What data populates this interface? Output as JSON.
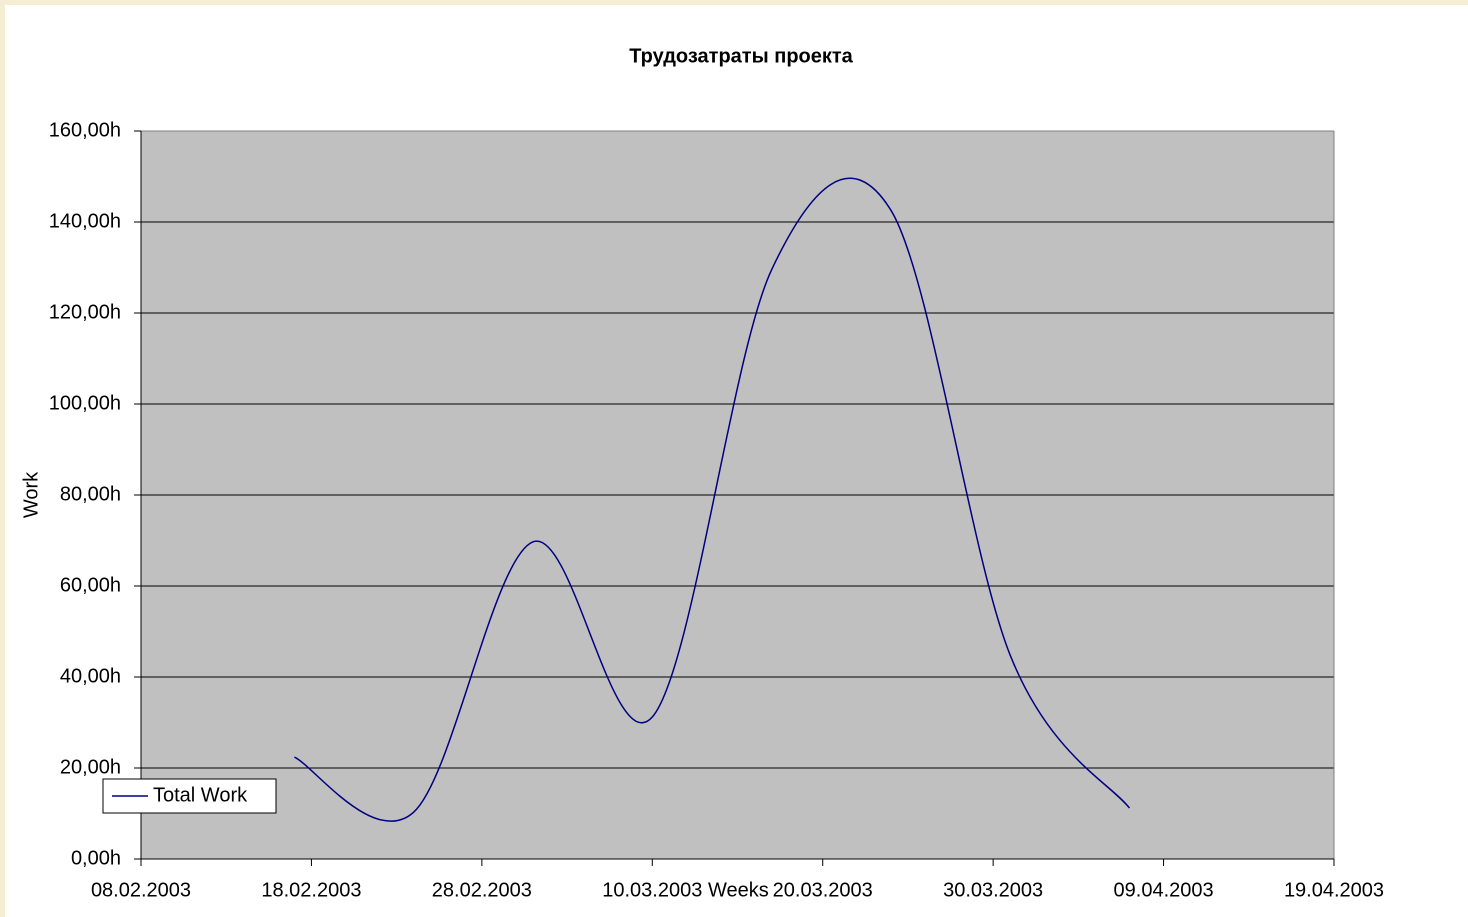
{
  "chart_data": {
    "type": "line",
    "title": "Трудозатраты проекта",
    "x_label": "Weeks",
    "y_label": "Work",
    "x": [
      "17.02.2003",
      "24.02.2003",
      "03.03.2003",
      "10.03.2003",
      "17.03.2003",
      "24.03.2003",
      "31.03.2003",
      "07.04.2003"
    ],
    "series": [
      {
        "name": "Total Work",
        "color": "#000080",
        "values": [
          22.4,
          10.3,
          69.7,
          31.2,
          129.5,
          142.6,
          44.8,
          11.2
        ]
      }
    ],
    "xlim": [
      "08.02.2003",
      "19.04.2003"
    ],
    "xticks": [
      "08.02.2003",
      "18.02.2003",
      "28.02.2003",
      "10.03.2003",
      "20.03.2003",
      "30.03.2003",
      "09.04.2003",
      "19.04.2003"
    ],
    "ylim": [
      0,
      160
    ],
    "yticks": [
      {
        "value": 0,
        "label": "0,00h"
      },
      {
        "value": 20,
        "label": "20,00h"
      },
      {
        "value": 40,
        "label": "40,00h"
      },
      {
        "value": 60,
        "label": "60,00h"
      },
      {
        "value": 80,
        "label": "80,00h"
      },
      {
        "value": 100,
        "label": "100,00h"
      },
      {
        "value": 120,
        "label": "120,00h"
      },
      {
        "value": 140,
        "label": "140,00h"
      },
      {
        "value": 160,
        "label": "160,00h"
      }
    ],
    "grid": true,
    "smooth": true,
    "legend": "bottom-left"
  }
}
